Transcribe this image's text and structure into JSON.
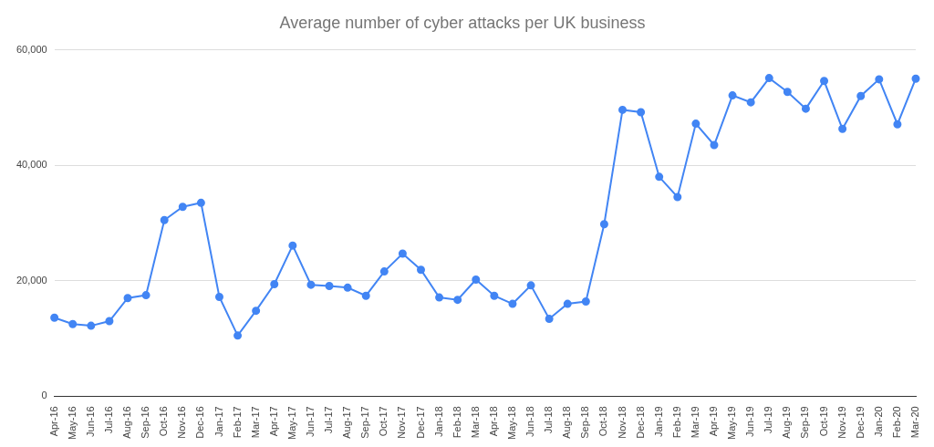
{
  "chart_data": {
    "type": "line",
    "title": "Average number of cyber attacks per UK business",
    "categories": [
      "Apr-16",
      "May-16",
      "Jun-16",
      "Jul-16",
      "Aug-16",
      "Sep-16",
      "Oct-16",
      "Nov-16",
      "Dec-16",
      "Jan-17",
      "Feb-17",
      "Mar-17",
      "Apr-17",
      "May-17",
      "Jun-17",
      "Jul-17",
      "Aug-17",
      "Sep-17",
      "Oct-17",
      "Nov-17",
      "Dec-17",
      "Jan-18",
      "Feb-18",
      "Mar-18",
      "Apr-18",
      "May-18",
      "Jun-18",
      "Jul-18",
      "Aug-18",
      "Sep-18",
      "Oct-18",
      "Nov-18",
      "Dec-18",
      "Jan-19",
      "Feb-19",
      "Mar-19",
      "Apr-19",
      "May-19",
      "Jun-19",
      "Jul-19",
      "Aug-19",
      "Sep-19",
      "Oct-19",
      "Nov-19",
      "Dec-19",
      "Jan-20",
      "Feb-20",
      "Mar-20"
    ],
    "values": [
      13600,
      12500,
      12200,
      13000,
      17000,
      17500,
      30500,
      32800,
      33500,
      17200,
      10500,
      14800,
      19400,
      26100,
      19300,
      19100,
      18800,
      17400,
      21600,
      24700,
      21900,
      17100,
      16700,
      20200,
      17400,
      16000,
      19200,
      13400,
      16000,
      16400,
      29800,
      49600,
      49200,
      38000,
      34500,
      47200,
      43500,
      52100,
      50900,
      55100,
      52700,
      49800,
      54600,
      46300,
      52000,
      54900,
      47100,
      55000
    ],
    "color": "#4285f4",
    "marker": "circle",
    "line_style": "solid",
    "ylim": [
      0,
      60000
    ],
    "yticks": [
      0,
      {
        "value": 20000,
        "label": "20,000"
      },
      {
        "value": 40000,
        "label": "40,000"
      },
      {
        "value": 60000,
        "label": "60,000"
      }
    ],
    "grid": true
  }
}
